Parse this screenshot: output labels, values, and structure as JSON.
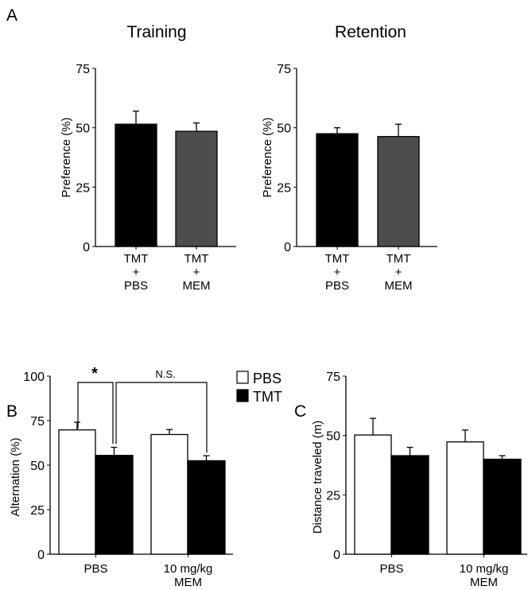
{
  "panel_labels": {
    "a": "A",
    "b": "B",
    "c": "C"
  },
  "chart_data": [
    {
      "id": "training",
      "type": "bar",
      "title": "Training",
      "ylabel": "Preference (%)",
      "ylim": [
        0,
        75
      ],
      "yticks": [
        "0",
        "25",
        "50",
        "75"
      ],
      "categories": [
        [
          "TMT",
          "+",
          "PBS"
        ],
        [
          "TMT",
          "+",
          "MEM"
        ]
      ],
      "series": [
        {
          "name": "Training",
          "values": [
            51.5,
            48.5
          ],
          "errors": [
            5.5,
            3.5
          ],
          "colors": [
            "#000000",
            "#4d4d4d"
          ]
        }
      ]
    },
    {
      "id": "retention",
      "type": "bar",
      "title": "Retention",
      "ylabel": "Preference (%)",
      "ylim": [
        0,
        75
      ],
      "yticks": [
        "0",
        "25",
        "50",
        "75"
      ],
      "categories": [
        [
          "TMT",
          "+",
          "PBS"
        ],
        [
          "TMT",
          "+",
          "MEM"
        ]
      ],
      "series": [
        {
          "name": "Retention",
          "values": [
            47.5,
            46.3
          ],
          "errors": [
            2.5,
            5.2
          ],
          "colors": [
            "#000000",
            "#4d4d4d"
          ]
        }
      ]
    },
    {
      "id": "alternation",
      "type": "bar",
      "title": "",
      "ylabel": "Alternation (%)",
      "ylim": [
        0,
        100
      ],
      "yticks": [
        "0",
        "25",
        "50",
        "75",
        "100"
      ],
      "categories": [
        [
          "PBS"
        ],
        [
          "10 mg/kg",
          "MEM"
        ]
      ],
      "series": [
        {
          "name": "PBS",
          "values": [
            69.8,
            67.2
          ],
          "errors": [
            4.3,
            2.8
          ],
          "color": "#ffffff"
        },
        {
          "name": "TMT",
          "values": [
            55.5,
            52.5
          ],
          "errors": [
            4.5,
            2.8
          ],
          "color": "#000000"
        }
      ],
      "legend": {
        "placement": "top-right",
        "entries": [
          "PBS",
          "TMT"
        ]
      },
      "annotations": [
        {
          "text": "*",
          "between": [
            "PBS/PBS",
            "PBS/TMT"
          ]
        },
        {
          "text": "N.S.",
          "between": [
            "PBS/TMT",
            "MEM/TMT"
          ]
        }
      ]
    },
    {
      "id": "distance",
      "type": "bar",
      "title": "",
      "ylabel": "Distance traveled (m)",
      "ylim": [
        0,
        75
      ],
      "yticks": [
        "0",
        "25",
        "50",
        "75"
      ],
      "categories": [
        [
          "PBS"
        ],
        [
          "10 mg/kg",
          "MEM"
        ]
      ],
      "series": [
        {
          "name": "PBS",
          "values": [
            50.2,
            47.3
          ],
          "errors": [
            7.0,
            5.0
          ],
          "color": "#ffffff"
        },
        {
          "name": "TMT",
          "values": [
            41.5,
            40.0
          ],
          "errors": [
            3.5,
            1.5
          ],
          "color": "#000000"
        }
      ]
    }
  ]
}
